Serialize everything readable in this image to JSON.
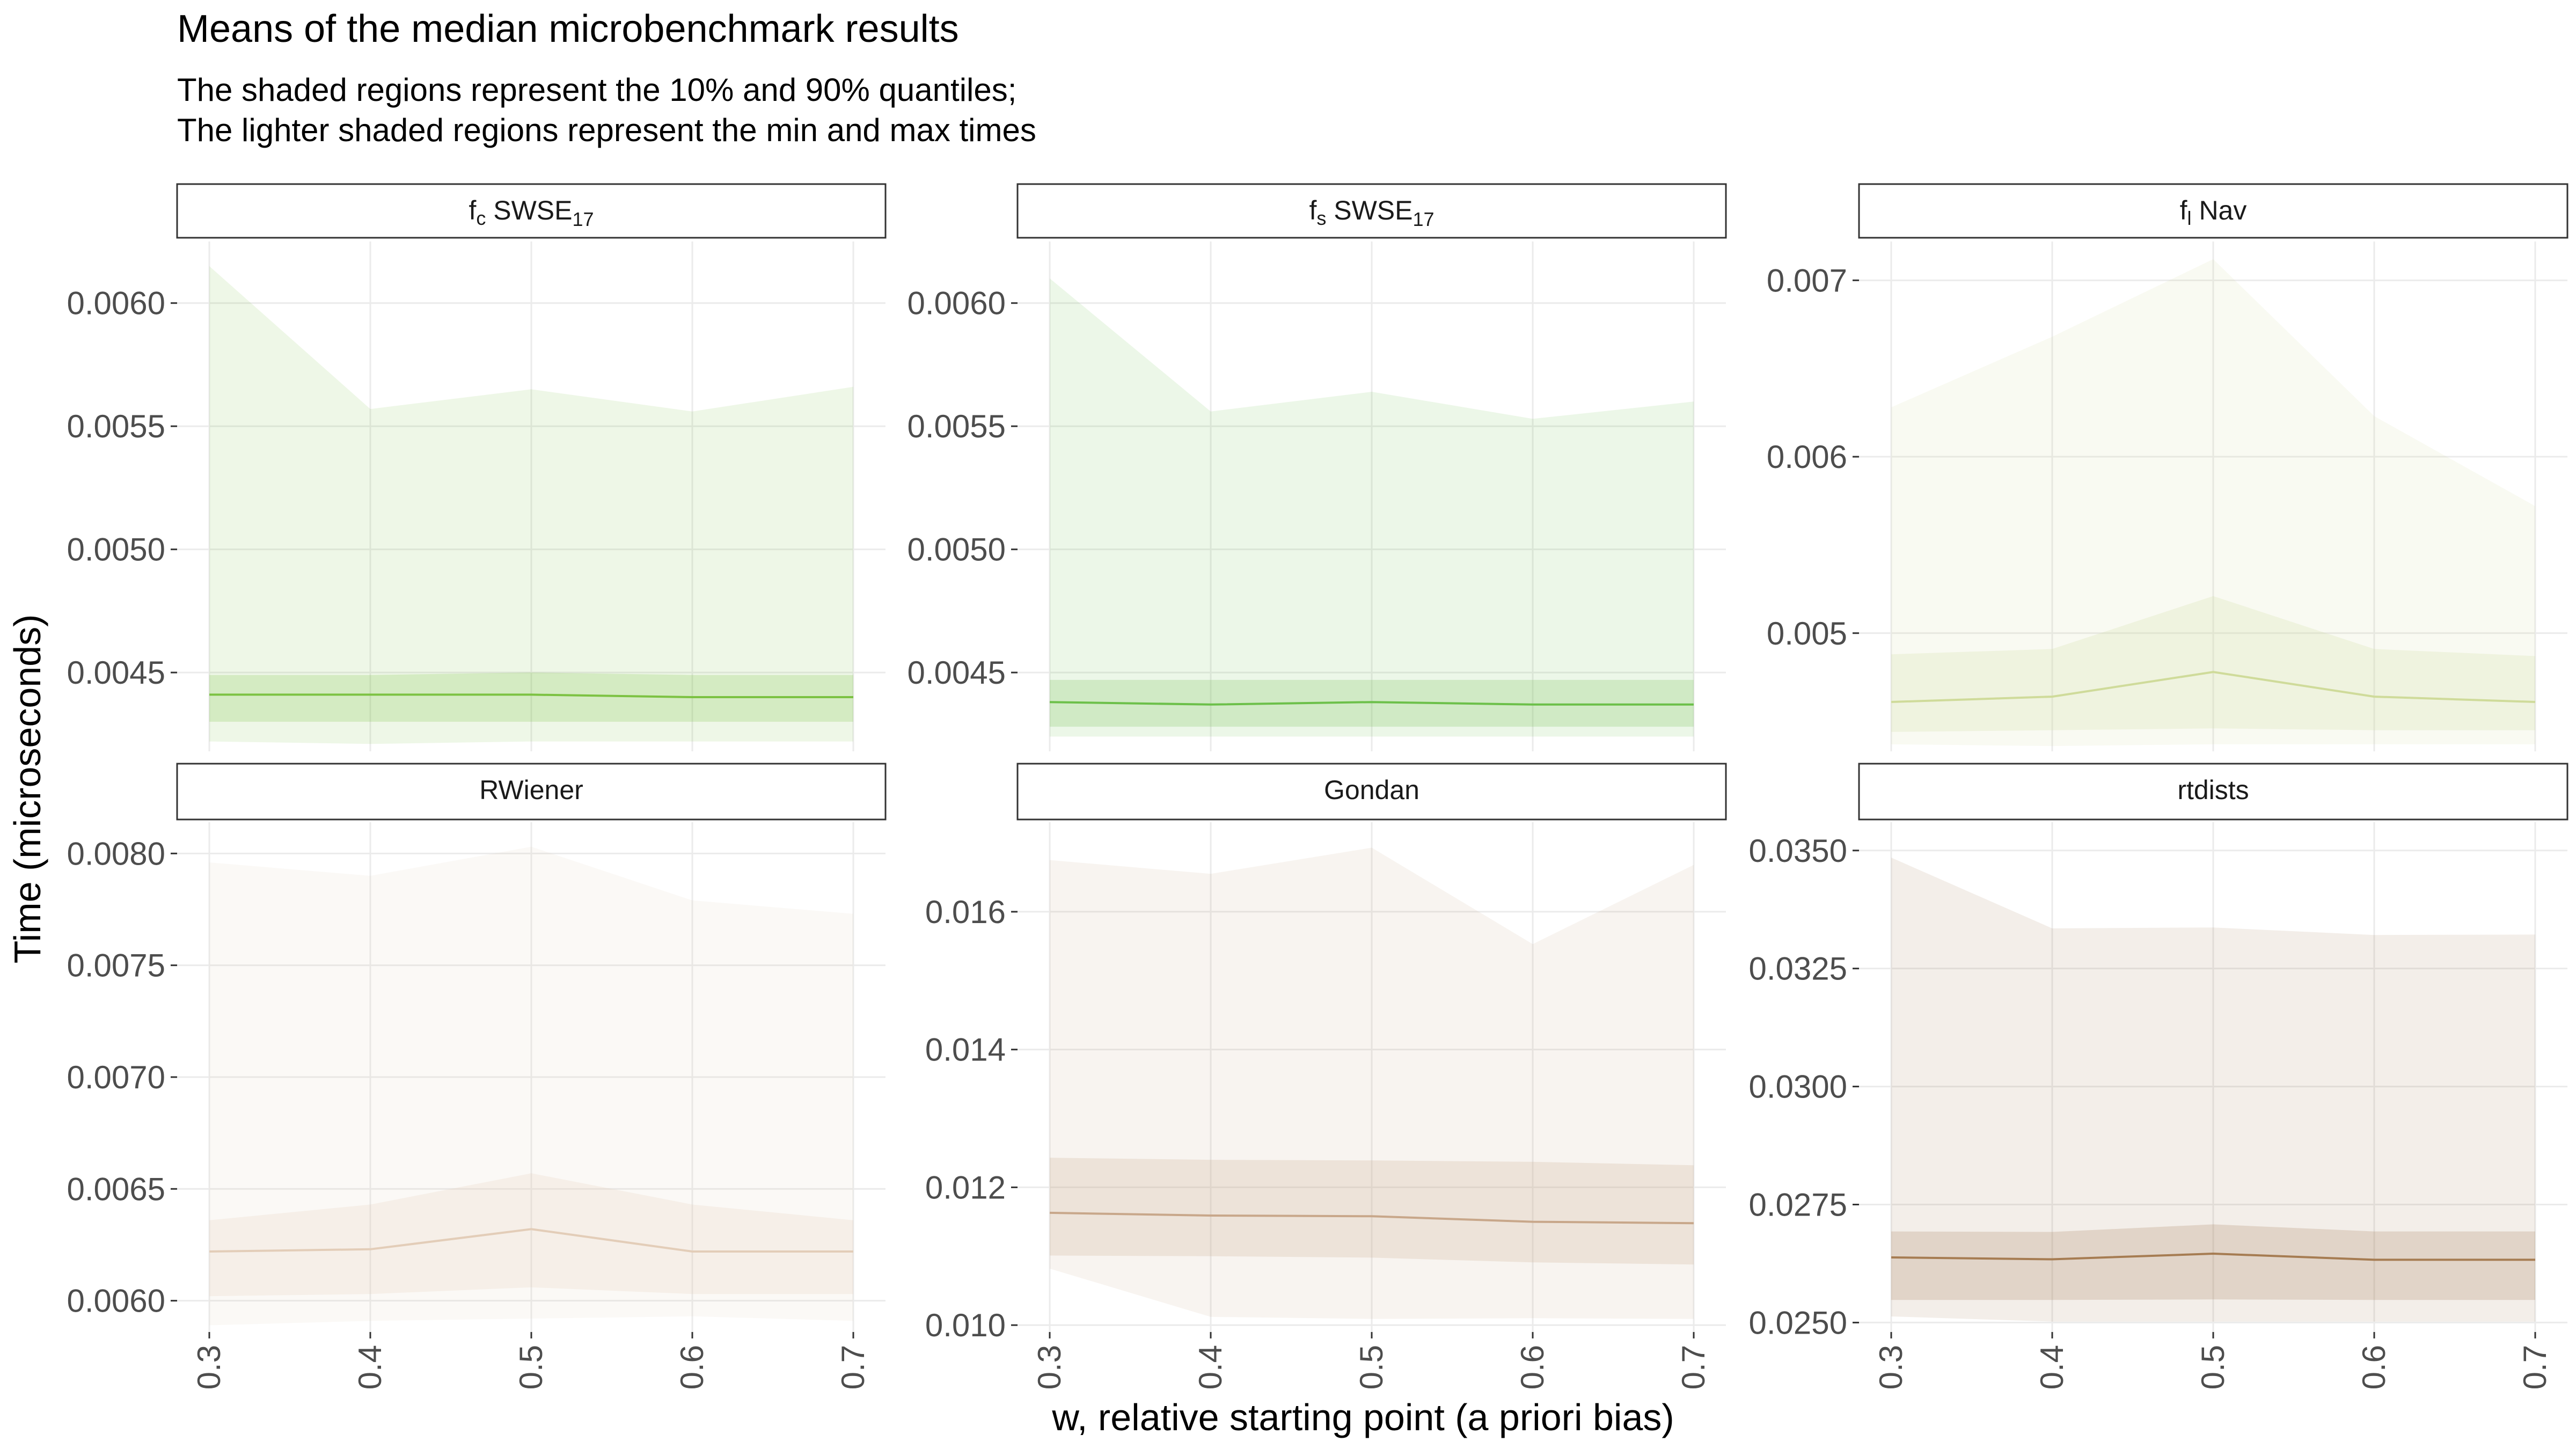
{
  "chart": {
    "title": "Means of the median microbenchmark results",
    "subtitle_line1": "The shaded regions represent the 10% and 90% quantiles;",
    "subtitle_line2": "The lighter shaded regions represent the min and max times",
    "xlabel": "w, relative starting point (a priori bias)",
    "ylabel": "Time (microseconds)"
  },
  "chart_data": [
    {
      "type": "line",
      "panel": "fc SWSE17",
      "strip": {
        "base": "f",
        "sub": "c",
        "name": " SWSE",
        "sup": "17"
      },
      "color": "#7cc242",
      "x": [
        0.3,
        0.4,
        0.5,
        0.6,
        0.7
      ],
      "xticks": [
        "0.3",
        "0.4",
        "0.5",
        "0.6",
        "0.7"
      ],
      "ylim": [
        0.00418,
        0.00625
      ],
      "yticks": [
        0.0045,
        0.005,
        0.0055,
        0.006
      ],
      "ytick_labels": [
        "0.0045",
        "0.0050",
        "0.0055",
        "0.0060"
      ],
      "mean": [
        0.00441,
        0.00441,
        0.00441,
        0.0044,
        0.0044
      ],
      "q10": [
        0.0043,
        0.0043,
        0.0043,
        0.0043,
        0.0043
      ],
      "q90": [
        0.00449,
        0.00449,
        0.0045,
        0.00449,
        0.00449
      ],
      "min": [
        0.00422,
        0.00421,
        0.00422,
        0.00422,
        0.00422
      ],
      "max": [
        0.00615,
        0.00557,
        0.00565,
        0.00556,
        0.00566
      ],
      "grid": true
    },
    {
      "type": "line",
      "panel": "fs SWSE17",
      "strip": {
        "base": "f",
        "sub": "s",
        "name": " SWSE",
        "sup": "17"
      },
      "color": "#6cc04a",
      "x": [
        0.3,
        0.4,
        0.5,
        0.6,
        0.7
      ],
      "xticks": [
        "0.3",
        "0.4",
        "0.5",
        "0.6",
        "0.7"
      ],
      "ylim": [
        0.00418,
        0.00625
      ],
      "yticks": [
        0.0045,
        0.005,
        0.0055,
        0.006
      ],
      "ytick_labels": [
        "0.0045",
        "0.0050",
        "0.0055",
        "0.0060"
      ],
      "mean": [
        0.00438,
        0.00437,
        0.00438,
        0.00437,
        0.00437
      ],
      "q10": [
        0.00428,
        0.00428,
        0.00428,
        0.00428,
        0.00428
      ],
      "q90": [
        0.00447,
        0.00447,
        0.00447,
        0.00447,
        0.00447
      ],
      "min": [
        0.00424,
        0.00424,
        0.00424,
        0.00424,
        0.00424
      ],
      "max": [
        0.0061,
        0.00556,
        0.00564,
        0.00553,
        0.0056
      ],
      "grid": true
    },
    {
      "type": "line",
      "panel": "fl Nav",
      "strip": {
        "base": "f",
        "sub": "l",
        "name": " Nav",
        "sup": ""
      },
      "color": "#cfdb9a",
      "x": [
        0.3,
        0.4,
        0.5,
        0.6,
        0.7
      ],
      "xticks": [
        "0.3",
        "0.4",
        "0.5",
        "0.6",
        "0.7"
      ],
      "ylim": [
        0.00433,
        0.00722
      ],
      "yticks": [
        0.005,
        0.006,
        0.007
      ],
      "ytick_labels": [
        "0.005",
        "0.006",
        "0.007"
      ],
      "mean": [
        0.00461,
        0.00464,
        0.00478,
        0.00464,
        0.00461
      ],
      "q10": [
        0.00444,
        0.00445,
        0.00446,
        0.00445,
        0.00445
      ],
      "q90": [
        0.00488,
        0.00491,
        0.00521,
        0.00491,
        0.00487
      ],
      "min": [
        0.00437,
        0.00436,
        0.00437,
        0.00437,
        0.00437
      ],
      "max": [
        0.00628,
        0.00668,
        0.00712,
        0.00623,
        0.00572
      ],
      "grid": true
    },
    {
      "type": "line",
      "panel": "RWiener",
      "strip": {
        "base": "RWiener",
        "sub": "",
        "name": "",
        "sup": ""
      },
      "color": "#e3cdb8",
      "x": [
        0.3,
        0.4,
        0.5,
        0.6,
        0.7
      ],
      "xticks": [
        "0.3",
        "0.4",
        "0.5",
        "0.6",
        "0.7"
      ],
      "ylim": [
        0.00586,
        0.00814
      ],
      "yticks": [
        0.006,
        0.0065,
        0.007,
        0.0075,
        0.008
      ],
      "ytick_labels": [
        "0.0060",
        "0.0065",
        "0.0070",
        "0.0075",
        "0.0080"
      ],
      "mean": [
        0.00622,
        0.00623,
        0.00632,
        0.00622,
        0.00622
      ],
      "q10": [
        0.00602,
        0.00603,
        0.00606,
        0.00603,
        0.00603
      ],
      "q90": [
        0.00636,
        0.00643,
        0.00657,
        0.00643,
        0.00636
      ],
      "min": [
        0.00589,
        0.00591,
        0.00592,
        0.00593,
        0.00591
      ],
      "max": [
        0.00796,
        0.0079,
        0.00803,
        0.00779,
        0.00773
      ],
      "grid": true
    },
    {
      "type": "line",
      "panel": "Gondan",
      "strip": {
        "base": "Gondan",
        "sub": "",
        "name": "",
        "sup": ""
      },
      "color": "#c8a78a",
      "x": [
        0.3,
        0.4,
        0.5,
        0.6,
        0.7
      ],
      "xticks": [
        "0.3",
        "0.4",
        "0.5",
        "0.6",
        "0.7"
      ],
      "ylim": [
        0.0099,
        0.0173
      ],
      "yticks": [
        0.01,
        0.012,
        0.014,
        0.016
      ],
      "ytick_labels": [
        "0.010",
        "0.012",
        "0.014",
        "0.016"
      ],
      "mean": [
        0.01163,
        0.01159,
        0.01158,
        0.0115,
        0.01148
      ],
      "q10": [
        0.01101,
        0.011,
        0.01098,
        0.01091,
        0.01088
      ],
      "q90": [
        0.01243,
        0.0124,
        0.01239,
        0.01237,
        0.01232
      ],
      "min": [
        0.01082,
        0.01012,
        0.01009,
        0.0101,
        0.01009
      ],
      "max": [
        0.01675,
        0.01655,
        0.01693,
        0.01553,
        0.01668
      ],
      "grid": true
    },
    {
      "type": "line",
      "panel": "rtdists",
      "strip": {
        "base": "rtdists",
        "sub": "",
        "name": "",
        "sup": ""
      },
      "color": "#a67c52",
      "x": [
        0.3,
        0.4,
        0.5,
        0.6,
        0.7
      ],
      "xticks": [
        "0.3",
        "0.4",
        "0.5",
        "0.6",
        "0.7"
      ],
      "ylim": [
        0.0248,
        0.0356
      ],
      "yticks": [
        0.025,
        0.0275,
        0.03,
        0.0325,
        0.035
      ],
      "ytick_labels": [
        "0.0250",
        "0.0275",
        "0.0300",
        "0.0325",
        "0.0350"
      ],
      "mean": [
        0.02638,
        0.02634,
        0.02646,
        0.02633,
        0.02633
      ],
      "q10": [
        0.02548,
        0.02548,
        0.02549,
        0.02548,
        0.02548
      ],
      "q90": [
        0.02693,
        0.02692,
        0.02708,
        0.02693,
        0.02693
      ],
      "min": [
        0.02513,
        0.02502,
        0.02502,
        0.02502,
        0.02502
      ],
      "max": [
        0.03485,
        0.03335,
        0.03337,
        0.03321,
        0.03322
      ],
      "grid": true
    }
  ]
}
